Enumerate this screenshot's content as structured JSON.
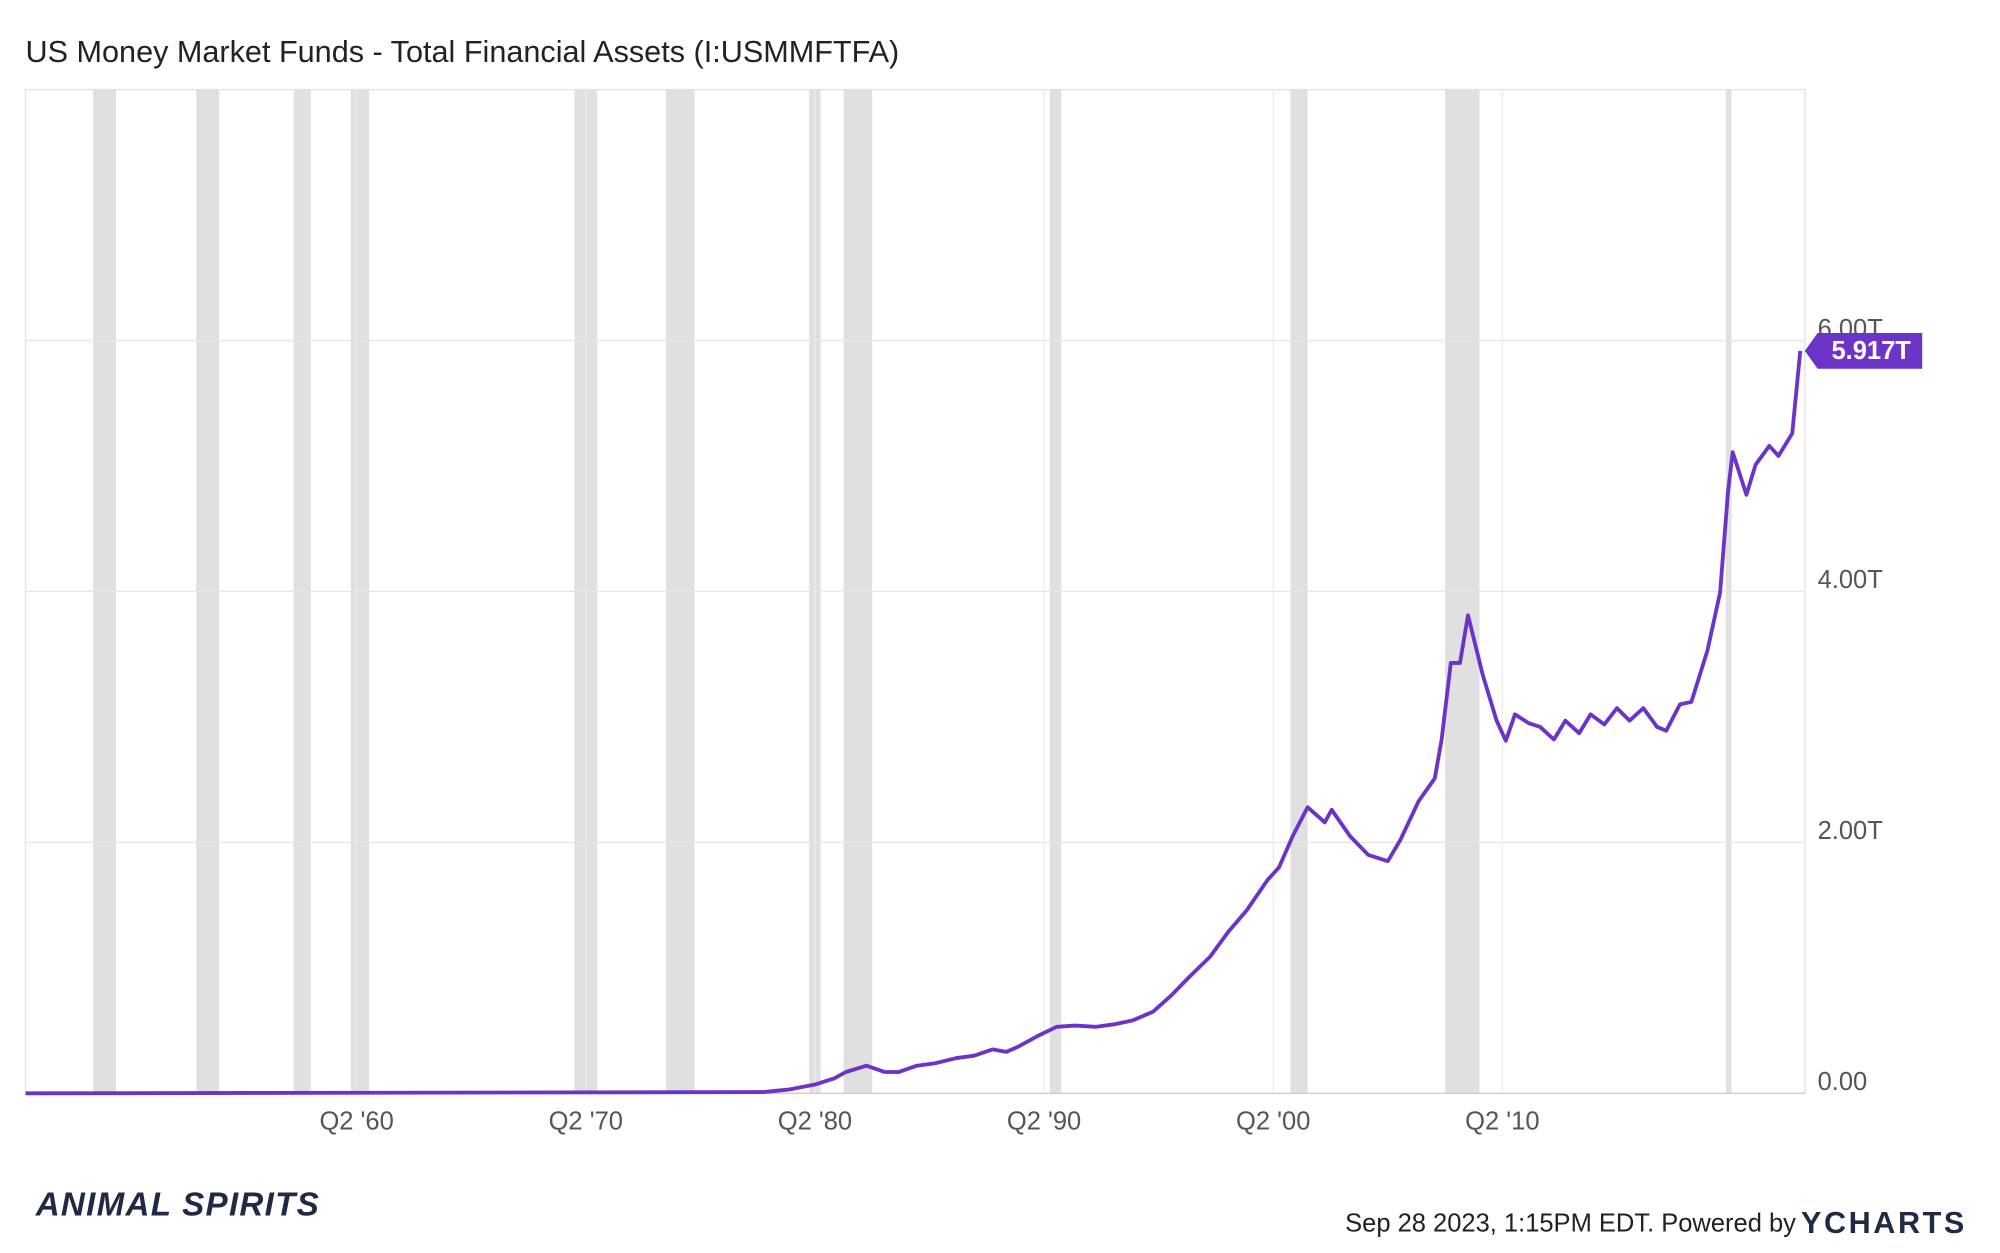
{
  "chart_data": {
    "type": "line",
    "title": "US Money Market Funds - Total Financial Assets (I:USMMFTFA)",
    "x": [
      1945.8,
      1978.0,
      1979.1,
      1980.25,
      1981.1,
      1981.6,
      1982.5,
      1983.3,
      1983.9,
      1984.7,
      1985.5,
      1986.4,
      1987.2,
      1988.0,
      1988.6,
      1989.1,
      1990.0,
      1990.8,
      1991.6,
      1992.5,
      1993.3,
      1994.1,
      1995.0,
      1995.8,
      1996.6,
      1997.5,
      1998.3,
      1999.1,
      2000.0,
      2000.5,
      2001.1,
      2001.75,
      2002.5,
      2002.8,
      2003.6,
      2004.4,
      2005.25,
      2005.8,
      2006.6,
      2007.3,
      2007.6,
      2008.0,
      2008.4,
      2008.75,
      2009.4,
      2010.0,
      2010.4,
      2010.8,
      2011.4,
      2011.9,
      2012.5,
      2013.0,
      2013.6,
      2014.1,
      2014.7,
      2015.25,
      2015.8,
      2016.4,
      2017.0,
      2017.4,
      2018.0,
      2018.5,
      2019.2,
      2019.75,
      2020.1,
      2020.3,
      2020.9,
      2021.3,
      2021.9,
      2022.3,
      2022.9,
      2023.25
    ],
    "series": [
      {
        "name": "US Money Market Funds - Total Financial Assets",
        "color": "#6c33c9",
        "values": [
          0,
          0.01,
          0.03,
          0.07,
          0.12,
          0.17,
          0.22,
          0.17,
          0.17,
          0.22,
          0.24,
          0.28,
          0.3,
          0.35,
          0.33,
          0.37,
          0.46,
          0.53,
          0.54,
          0.53,
          0.55,
          0.58,
          0.65,
          0.78,
          0.93,
          1.09,
          1.29,
          1.46,
          1.7,
          1.8,
          2.05,
          2.28,
          2.16,
          2.26,
          2.05,
          1.9,
          1.85,
          2.02,
          2.33,
          2.51,
          2.82,
          3.43,
          3.43,
          3.81,
          3.33,
          2.97,
          2.81,
          3.02,
          2.95,
          2.92,
          2.82,
          2.97,
          2.87,
          3.02,
          2.94,
          3.07,
          2.97,
          3.07,
          2.92,
          2.89,
          3.1,
          3.12,
          3.53,
          3.99,
          4.8,
          5.11,
          4.77,
          5.01,
          5.16,
          5.08,
          5.26,
          5.917
        ]
      }
    ],
    "last_value_label": "5.917T",
    "recessions": [
      [
        1948.75,
        1949.75
      ],
      [
        1953.25,
        1954.25
      ],
      [
        1957.5,
        1958.25
      ],
      [
        1960.0,
        1960.8
      ],
      [
        1969.75,
        1970.75
      ],
      [
        1973.75,
        1975.0
      ],
      [
        1980.0,
        1980.5
      ],
      [
        1981.5,
        1982.75
      ],
      [
        1990.5,
        1991.0
      ],
      [
        2001.0,
        2001.75
      ],
      [
        2007.75,
        2009.25
      ],
      [
        2020.0,
        2020.25
      ]
    ],
    "recession_color": "#e0e0e0",
    "xlim": [
      1945.8,
      2023.45
    ],
    "xticks": [
      {
        "value": 1960.25,
        "label": "Q2 '60"
      },
      {
        "value": 1970.25,
        "label": "Q2 '70"
      },
      {
        "value": 1980.25,
        "label": "Q2 '80"
      },
      {
        "value": 1990.25,
        "label": "Q2 '90"
      },
      {
        "value": 2000.25,
        "label": "Q2 '00"
      },
      {
        "value": 2010.25,
        "label": "Q2 '10"
      }
    ],
    "ylim": [
      0,
      8
    ],
    "yticks": [
      {
        "value": 0,
        "label": "0.00"
      },
      {
        "value": 2,
        "label": "2.00T"
      },
      {
        "value": 4,
        "label": "4.00T"
      },
      {
        "value": 6,
        "label": "6.00T"
      }
    ],
    "grid": true,
    "footer": "Sep 28 2023, 1:15PM EDT. Powered by",
    "brand": "YCHARTS",
    "watermark": "ANIMAL SPIRITS"
  }
}
